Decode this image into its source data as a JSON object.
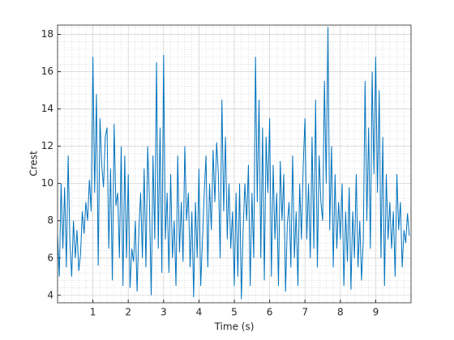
{
  "chart_data": {
    "type": "line",
    "xlabel": "Time (s)",
    "ylabel": "Crest",
    "x": [
      0,
      0.05,
      0.1,
      0.15,
      0.2,
      0.25,
      0.3,
      0.35,
      0.4,
      0.45,
      0.5,
      0.55,
      0.6,
      0.65,
      0.7,
      0.75,
      0.8,
      0.85,
      0.9,
      0.95,
      1,
      1.05,
      1.1,
      1.15,
      1.2,
      1.25,
      1.3,
      1.35,
      1.4,
      1.45,
      1.5,
      1.55,
      1.6,
      1.65,
      1.7,
      1.75,
      1.8,
      1.85,
      1.9,
      1.95,
      2,
      2.05,
      2.1,
      2.15,
      2.2,
      2.25,
      2.3,
      2.35,
      2.4,
      2.45,
      2.5,
      2.55,
      2.6,
      2.65,
      2.7,
      2.75,
      2.8,
      2.85,
      2.9,
      2.95,
      3,
      3.05,
      3.1,
      3.15,
      3.2,
      3.25,
      3.3,
      3.35,
      3.4,
      3.45,
      3.5,
      3.55,
      3.6,
      3.65,
      3.7,
      3.75,
      3.8,
      3.85,
      3.9,
      3.95,
      4,
      4.05,
      4.1,
      4.15,
      4.2,
      4.25,
      4.3,
      4.35,
      4.4,
      4.45,
      4.5,
      4.55,
      4.6,
      4.65,
      4.7,
      4.75,
      4.8,
      4.85,
      4.9,
      4.95,
      5,
      5.05,
      5.1,
      5.15,
      5.2,
      5.25,
      5.3,
      5.35,
      5.4,
      5.45,
      5.5,
      5.55,
      5.6,
      5.65,
      5.7,
      5.75,
      5.8,
      5.85,
      5.9,
      5.95,
      6,
      6.05,
      6.1,
      6.15,
      6.2,
      6.25,
      6.3,
      6.35,
      6.4,
      6.45,
      6.5,
      6.55,
      6.6,
      6.65,
      6.7,
      6.75,
      6.8,
      6.85,
      6.9,
      6.95,
      7,
      7.05,
      7.1,
      7.15,
      7.2,
      7.25,
      7.3,
      7.35,
      7.4,
      7.45,
      7.5,
      7.55,
      7.6,
      7.65,
      7.7,
      7.75,
      7.8,
      7.85,
      7.9,
      7.95,
      8,
      8.05,
      8.1,
      8.15,
      8.2,
      8.25,
      8.3,
      8.35,
      8.4,
      8.45,
      8.5,
      8.55,
      8.6,
      8.65,
      8.7,
      8.75,
      8.8,
      8.85,
      8.9,
      8.95,
      9,
      9.05,
      9.1,
      9.15,
      9.2,
      9.25,
      9.3,
      9.35,
      9.4,
      9.45,
      9.5,
      9.55,
      9.6,
      9.65,
      9.7,
      9.75,
      9.8,
      9.85,
      9.9,
      9.95
    ],
    "series": [
      {
        "name": "Crest",
        "color": "#0072bd",
        "values": [
          7.2,
          5.0,
          10.0,
          6.5,
          9.8,
          5.5,
          11.5,
          6.8,
          5.0,
          8.0,
          6.0,
          7.5,
          5.3,
          6.2,
          8.5,
          7.3,
          9.0,
          8.0,
          10.2,
          8.5,
          16.8,
          9.5,
          14.8,
          5.6,
          13.5,
          11.0,
          9.8,
          12.5,
          13.0,
          6.5,
          10.8,
          4.8,
          13.2,
          8.8,
          9.5,
          6.0,
          12.0,
          4.5,
          11.5,
          6.0,
          10.5,
          4.4,
          6.5,
          5.8,
          8.0,
          4.2,
          7.5,
          9.5,
          6.0,
          10.8,
          5.5,
          12.0,
          9.0,
          4.0,
          11.5,
          7.0,
          16.5,
          6.5,
          13.0,
          5.2,
          16.9,
          7.0,
          9.5,
          5.2,
          10.5,
          6.0,
          8.0,
          4.5,
          11.5,
          6.3,
          9.0,
          5.8,
          12.0,
          8.0,
          9.5,
          5.5,
          8.5,
          3.9,
          9.0,
          6.0,
          10.8,
          4.5,
          7.0,
          9.5,
          11.5,
          5.5,
          10.0,
          7.5,
          11.8,
          9.0,
          12.2,
          10.5,
          6.0,
          14.5,
          8.5,
          12.5,
          7.0,
          10.0,
          6.5,
          8.5,
          4.5,
          9.5,
          5.0,
          10.0,
          3.8,
          7.5,
          10.0,
          8.0,
          11.0,
          4.5,
          9.5,
          6.0,
          16.8,
          9.0,
          14.5,
          6.0,
          13.0,
          4.8,
          12.5,
          9.5,
          13.5,
          5.0,
          11.0,
          7.0,
          9.5,
          4.5,
          11.2,
          8.0,
          10.5,
          4.2,
          7.8,
          9.0,
          5.5,
          11.5,
          6.0,
          8.5,
          4.5,
          10.0,
          7.0,
          11.0,
          13.5,
          7.0,
          10.0,
          6.0,
          12.5,
          6.5,
          14.5,
          5.5,
          11.5,
          9.0,
          8.0,
          15.5,
          10.0,
          18.4,
          7.5,
          12.0,
          5.5,
          10.5,
          6.5,
          9.0,
          7.0,
          10.0,
          4.5,
          8.5,
          5.8,
          9.8,
          4.3,
          8.5,
          6.0,
          10.5,
          5.5,
          8.0,
          4.8,
          7.0,
          15.5,
          8.0,
          13.0,
          6.5,
          16.0,
          10.5,
          16.8,
          9.5,
          15.0,
          6.0,
          12.5,
          4.5,
          10.5,
          7.0,
          9.0,
          6.5,
          8.5,
          5.0,
          10.5,
          7.5,
          9.0,
          5.5,
          7.5,
          6.8,
          8.4,
          7.2
        ]
      }
    ],
    "xlim": [
      0,
      10
    ],
    "xticks": [
      1,
      2,
      3,
      4,
      5,
      6,
      7,
      8,
      9
    ],
    "ylim": [
      3.6,
      18.5
    ],
    "yticks": [
      4,
      6,
      8,
      10,
      12,
      14,
      16,
      18
    ],
    "grid": true,
    "minor_grid": true
  }
}
